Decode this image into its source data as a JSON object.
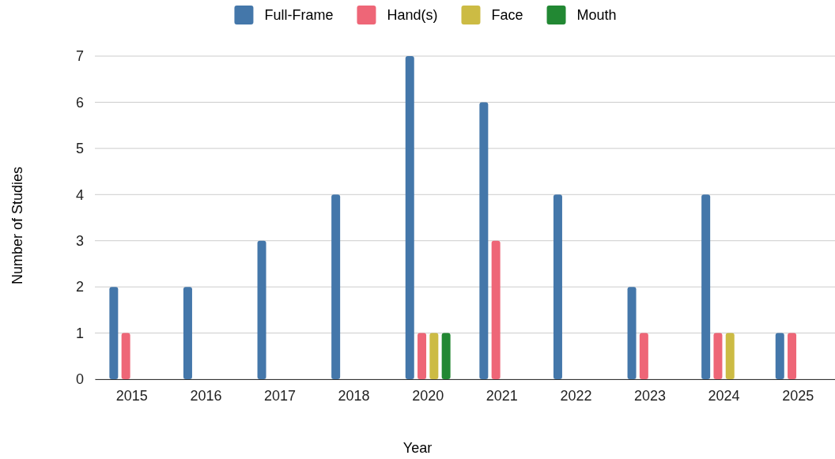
{
  "chart_data": {
    "type": "bar",
    "xlabel": "Year",
    "ylabel": "Number of Studies",
    "categories": [
      "2015",
      "2016",
      "2017",
      "2018",
      "2020",
      "2021",
      "2022",
      "2023",
      "2024",
      "2025"
    ],
    "series": [
      {
        "name": "Full-Frame",
        "color": "#4477aa",
        "values": [
          2,
          2,
          3,
          4,
          7,
          6,
          4,
          2,
          4,
          1
        ]
      },
      {
        "name": "Hand(s)",
        "color": "#ee6677",
        "values": [
          1,
          0,
          0,
          0,
          1,
          3,
          0,
          1,
          1,
          1
        ]
      },
      {
        "name": "Face",
        "color": "#ccbb44",
        "values": [
          0,
          0,
          0,
          0,
          1,
          0,
          0,
          0,
          1,
          0
        ]
      },
      {
        "name": "Mouth",
        "color": "#228833",
        "values": [
          0,
          0,
          0,
          0,
          1,
          0,
          0,
          0,
          0,
          0
        ]
      }
    ],
    "ylim": [
      0,
      7
    ],
    "yticks": [
      0,
      1,
      2,
      3,
      4,
      5,
      6,
      7
    ],
    "grid": "y",
    "legend": "top"
  }
}
